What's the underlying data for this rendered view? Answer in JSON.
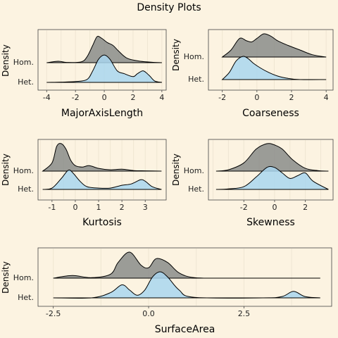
{
  "page": {
    "title": "Density Plots"
  },
  "colors": {
    "background": "#fcf3e1",
    "hom": "#8a8c8a",
    "het": "#a9d6ee"
  },
  "chart_data": [
    {
      "type": "area",
      "title": "",
      "xlabel": "MajorAxisLength",
      "ylabel": "Density",
      "xlim": [
        -4.6,
        4.3
      ],
      "xticks": [
        -4,
        -2,
        0,
        2,
        4
      ],
      "grid": true,
      "groups": [
        "Hom.",
        "Het."
      ],
      "series": [
        {
          "name": "Hom.",
          "x": [
            -4.0,
            -3.2,
            -2.6,
            -1.6,
            -1.2,
            -0.8,
            -0.5,
            -0.2,
            0.2,
            0.6,
            1.0,
            1.6,
            2.5,
            3.5,
            4.0
          ],
          "y": [
            0.0,
            0.05,
            0.01,
            0.03,
            0.2,
            0.6,
            0.9,
            0.85,
            0.7,
            0.6,
            0.4,
            0.15,
            0.05,
            0.01,
            0.0
          ]
        },
        {
          "name": "Het.",
          "x": [
            -4.0,
            -3.0,
            -2.0,
            -1.2,
            -0.8,
            -0.4,
            0.0,
            0.4,
            0.9,
            1.4,
            2.0,
            2.3,
            2.7,
            3.1,
            3.5,
            4.0
          ],
          "y": [
            0.0,
            0.01,
            0.03,
            0.1,
            0.4,
            0.8,
            0.95,
            0.8,
            0.4,
            0.3,
            0.2,
            0.3,
            0.4,
            0.25,
            0.05,
            0.0
          ]
        }
      ]
    },
    {
      "type": "area",
      "title": "",
      "xlabel": "Coarseness",
      "ylabel": "Density",
      "xlim": [
        -2.8,
        4.4
      ],
      "xticks": [
        -2,
        0,
        2,
        4
      ],
      "grid": true,
      "groups": [
        "Hom.",
        "Het."
      ],
      "series": [
        {
          "name": "Hom.",
          "x": [
            -2.0,
            -1.5,
            -1.0,
            -0.6,
            -0.3,
            0.0,
            0.4,
            0.8,
            1.2,
            1.8,
            2.5,
            3.2,
            4.0
          ],
          "y": [
            0.0,
            0.3,
            0.8,
            0.7,
            0.65,
            0.8,
            1.0,
            0.9,
            0.7,
            0.5,
            0.3,
            0.1,
            0.0
          ]
        },
        {
          "name": "Het.",
          "x": [
            -2.0,
            -1.6,
            -1.2,
            -0.8,
            -0.5,
            -0.2,
            0.2,
            0.7,
            1.2,
            1.8,
            2.5,
            4.0
          ],
          "y": [
            0.0,
            0.3,
            0.8,
            1.0,
            0.9,
            0.7,
            0.5,
            0.3,
            0.15,
            0.05,
            0.0,
            0.0
          ]
        }
      ]
    },
    {
      "type": "area",
      "title": "",
      "xlabel": "Kurtosis",
      "ylabel": "Density",
      "xlim": [
        -1.6,
        3.9
      ],
      "xticks": [
        -1,
        0,
        1,
        2,
        3
      ],
      "grid": true,
      "groups": [
        "Hom.",
        "Het."
      ],
      "series": [
        {
          "name": "Hom.",
          "x": [
            -1.4,
            -1.0,
            -0.8,
            -0.6,
            -0.4,
            -0.2,
            0.0,
            0.3,
            0.6,
            1.0,
            1.5,
            2.0,
            2.5,
            3.0,
            3.7
          ],
          "y": [
            0.0,
            0.3,
            0.9,
            1.0,
            0.8,
            0.4,
            0.2,
            0.15,
            0.2,
            0.1,
            0.05,
            0.07,
            0.02,
            0.01,
            0.0
          ]
        },
        {
          "name": "Het.",
          "x": [
            -1.4,
            -1.0,
            -0.6,
            -0.3,
            -0.1,
            0.2,
            0.5,
            1.0,
            1.5,
            2.0,
            2.4,
            2.8,
            3.0,
            3.3,
            3.7
          ],
          "y": [
            0.0,
            0.05,
            0.4,
            0.7,
            0.6,
            0.3,
            0.1,
            0.05,
            0.05,
            0.15,
            0.2,
            0.35,
            0.3,
            0.1,
            0.0
          ]
        }
      ]
    },
    {
      "type": "area",
      "title": "",
      "xlabel": "Skewness",
      "ylabel": "Density",
      "xlim": [
        -4.3,
        3.8
      ],
      "xticks": [
        -2,
        0,
        2
      ],
      "grid": true,
      "groups": [
        "Hom.",
        "Het."
      ],
      "series": [
        {
          "name": "Hom.",
          "x": [
            -3.8,
            -3.0,
            -2.0,
            -1.2,
            -0.5,
            0.0,
            0.5,
            1.2,
            2.0,
            2.8,
            3.5
          ],
          "y": [
            0.0,
            0.05,
            0.3,
            0.8,
            1.0,
            0.95,
            0.8,
            0.4,
            0.1,
            0.02,
            0.0
          ]
        },
        {
          "name": "Het.",
          "x": [
            -3.8,
            -3.0,
            -2.0,
            -1.2,
            -0.5,
            0.0,
            0.5,
            1.0,
            1.5,
            2.0,
            2.5,
            3.5
          ],
          "y": [
            0.0,
            0.02,
            0.1,
            0.45,
            0.8,
            0.8,
            0.6,
            0.4,
            0.5,
            0.6,
            0.3,
            0.0
          ]
        }
      ]
    },
    {
      "type": "area",
      "title": "",
      "xlabel": "SurfaceArea",
      "ylabel": "Density",
      "xlim": [
        -2.9,
        4.8
      ],
      "xticks": [
        -2.5,
        0.0,
        2.5
      ],
      "xtick_labels": [
        "-2.5",
        "0.0",
        "2.5"
      ],
      "grid": true,
      "groups": [
        "Hom.",
        "Het."
      ],
      "series": [
        {
          "name": "Hom.",
          "x": [
            -2.5,
            -2.0,
            -1.5,
            -1.0,
            -0.8,
            -0.5,
            -0.2,
            0.0,
            0.2,
            0.5,
            0.8,
            1.2,
            2.0,
            4.5
          ],
          "y": [
            0.0,
            0.1,
            0.02,
            0.15,
            0.6,
            1.0,
            0.5,
            0.4,
            0.75,
            0.6,
            0.2,
            0.02,
            0.0,
            0.0
          ]
        },
        {
          "name": "Het.",
          "x": [
            -2.5,
            -1.5,
            -1.0,
            -0.7,
            -0.5,
            -0.3,
            -0.1,
            0.1,
            0.3,
            0.5,
            0.8,
            1.2,
            3.0,
            3.5,
            3.8,
            4.1,
            4.5
          ],
          "y": [
            0.0,
            0.0,
            0.2,
            0.5,
            0.3,
            0.1,
            0.3,
            0.8,
            1.0,
            0.8,
            0.3,
            0.02,
            0.0,
            0.05,
            0.25,
            0.05,
            0.0
          ]
        }
      ]
    }
  ]
}
